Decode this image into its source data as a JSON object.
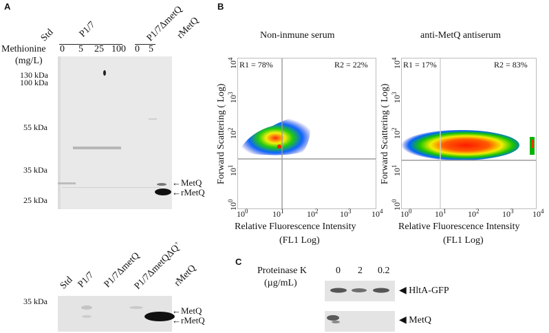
{
  "panel_a": {
    "letter": "A",
    "top": {
      "lane_labels": [
        "Std",
        "P1/7",
        "P1/7ΔmetQ",
        "rMetQ"
      ],
      "methionine_label": "Methionine",
      "unit_label": "(mg/L)",
      "p17_concentrations": [
        "0",
        "5",
        "25",
        "100"
      ],
      "mutant_concentrations": [
        "0",
        "5"
      ],
      "markers": [
        "130 kDa",
        "100 kDa",
        "55 kDa",
        "35 kDa",
        "25 kDa"
      ],
      "band_arrows": [
        "←MetQ",
        "←rMetQ"
      ]
    },
    "bottom": {
      "lane_labels": [
        "Std",
        "P1/7",
        "P1/7ΔmetQ",
        "P1/7ΔmetQΔQ",
        "rMetQ"
      ],
      "complement_sup": "+",
      "markers": [
        "35 kDa"
      ],
      "band_arrows": [
        "←MetQ",
        "←rMetQ"
      ]
    }
  },
  "panel_b": {
    "letter": "B",
    "plots": [
      {
        "title": "Non-inmune serum",
        "r1": "R1 = 78%",
        "r2": "R2 = 22%"
      },
      {
        "title": "anti-MetQ antiserum",
        "r1": "R1 = 17%",
        "r2": "R2 = 83%"
      }
    ],
    "ylabel": "Forward Scattering ( Log)",
    "xlabel_line1": "Relative Fluorescence Intensity",
    "xlabel_line2": "(FL1 Log)",
    "ticks": [
      "0",
      "1",
      "2",
      "3",
      "4"
    ]
  },
  "panel_c": {
    "letter": "C",
    "treatment_label": "Proteinase K",
    "unit_label": "(µg/mL)",
    "concentrations": [
      "0",
      "2",
      "0.2"
    ],
    "rows": [
      "HltA-GFP",
      "MetQ"
    ]
  }
}
